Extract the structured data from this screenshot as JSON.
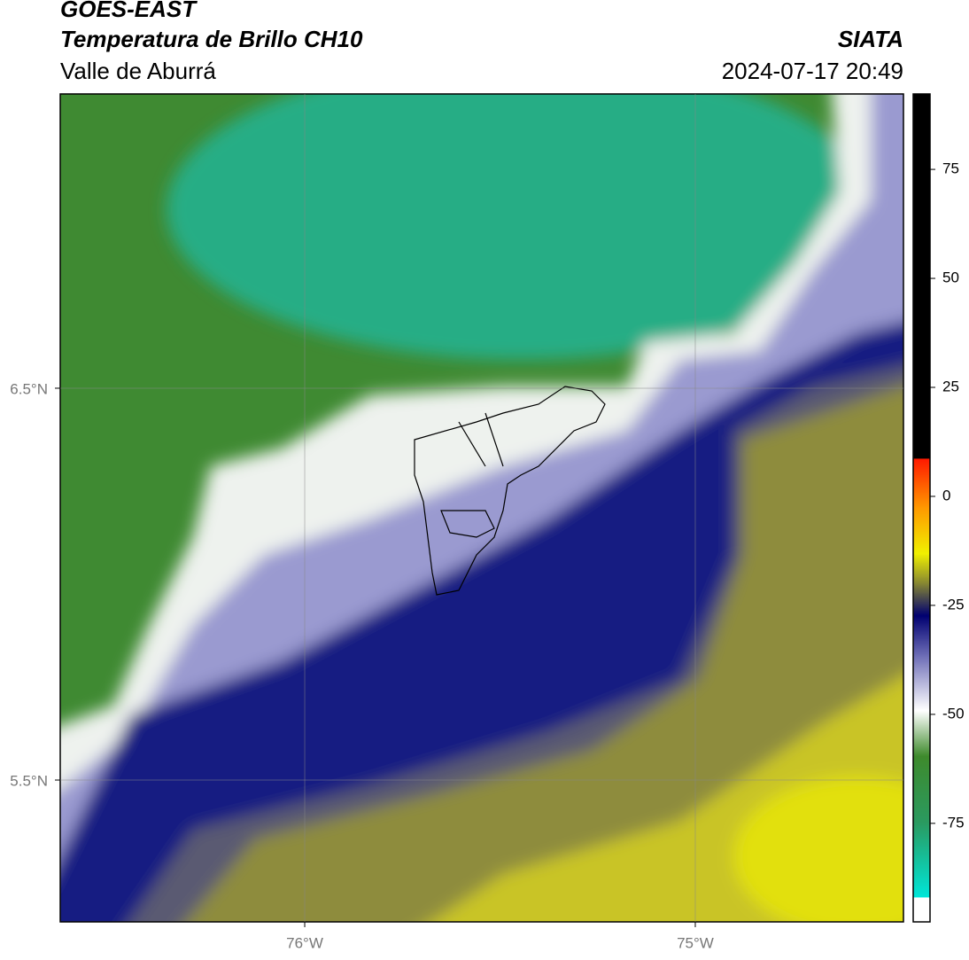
{
  "header": {
    "title": "GOES-EAST",
    "subtitle": "Temperatura de Brillo CH10",
    "region": "Valle de Aburrá",
    "source": "SIATA",
    "datetime": "2024-07-17 20:49"
  },
  "map": {
    "lonlim": [
      -76.626,
      -74.467
    ],
    "latlim": [
      5.138,
      7.251
    ],
    "lonticks": [
      {
        "value": -76,
        "label": "76°W"
      },
      {
        "value": -75,
        "label": "75°W"
      }
    ],
    "latticks": [
      {
        "value": 6.5,
        "label": "6.5°N"
      },
      {
        "value": 5.5,
        "label": "5.5°N"
      }
    ]
  },
  "colorbar": {
    "lim": [
      -97.6,
      92.3
    ],
    "ticks": [
      75,
      50,
      25,
      0,
      -25,
      -50,
      -75
    ]
  }
}
